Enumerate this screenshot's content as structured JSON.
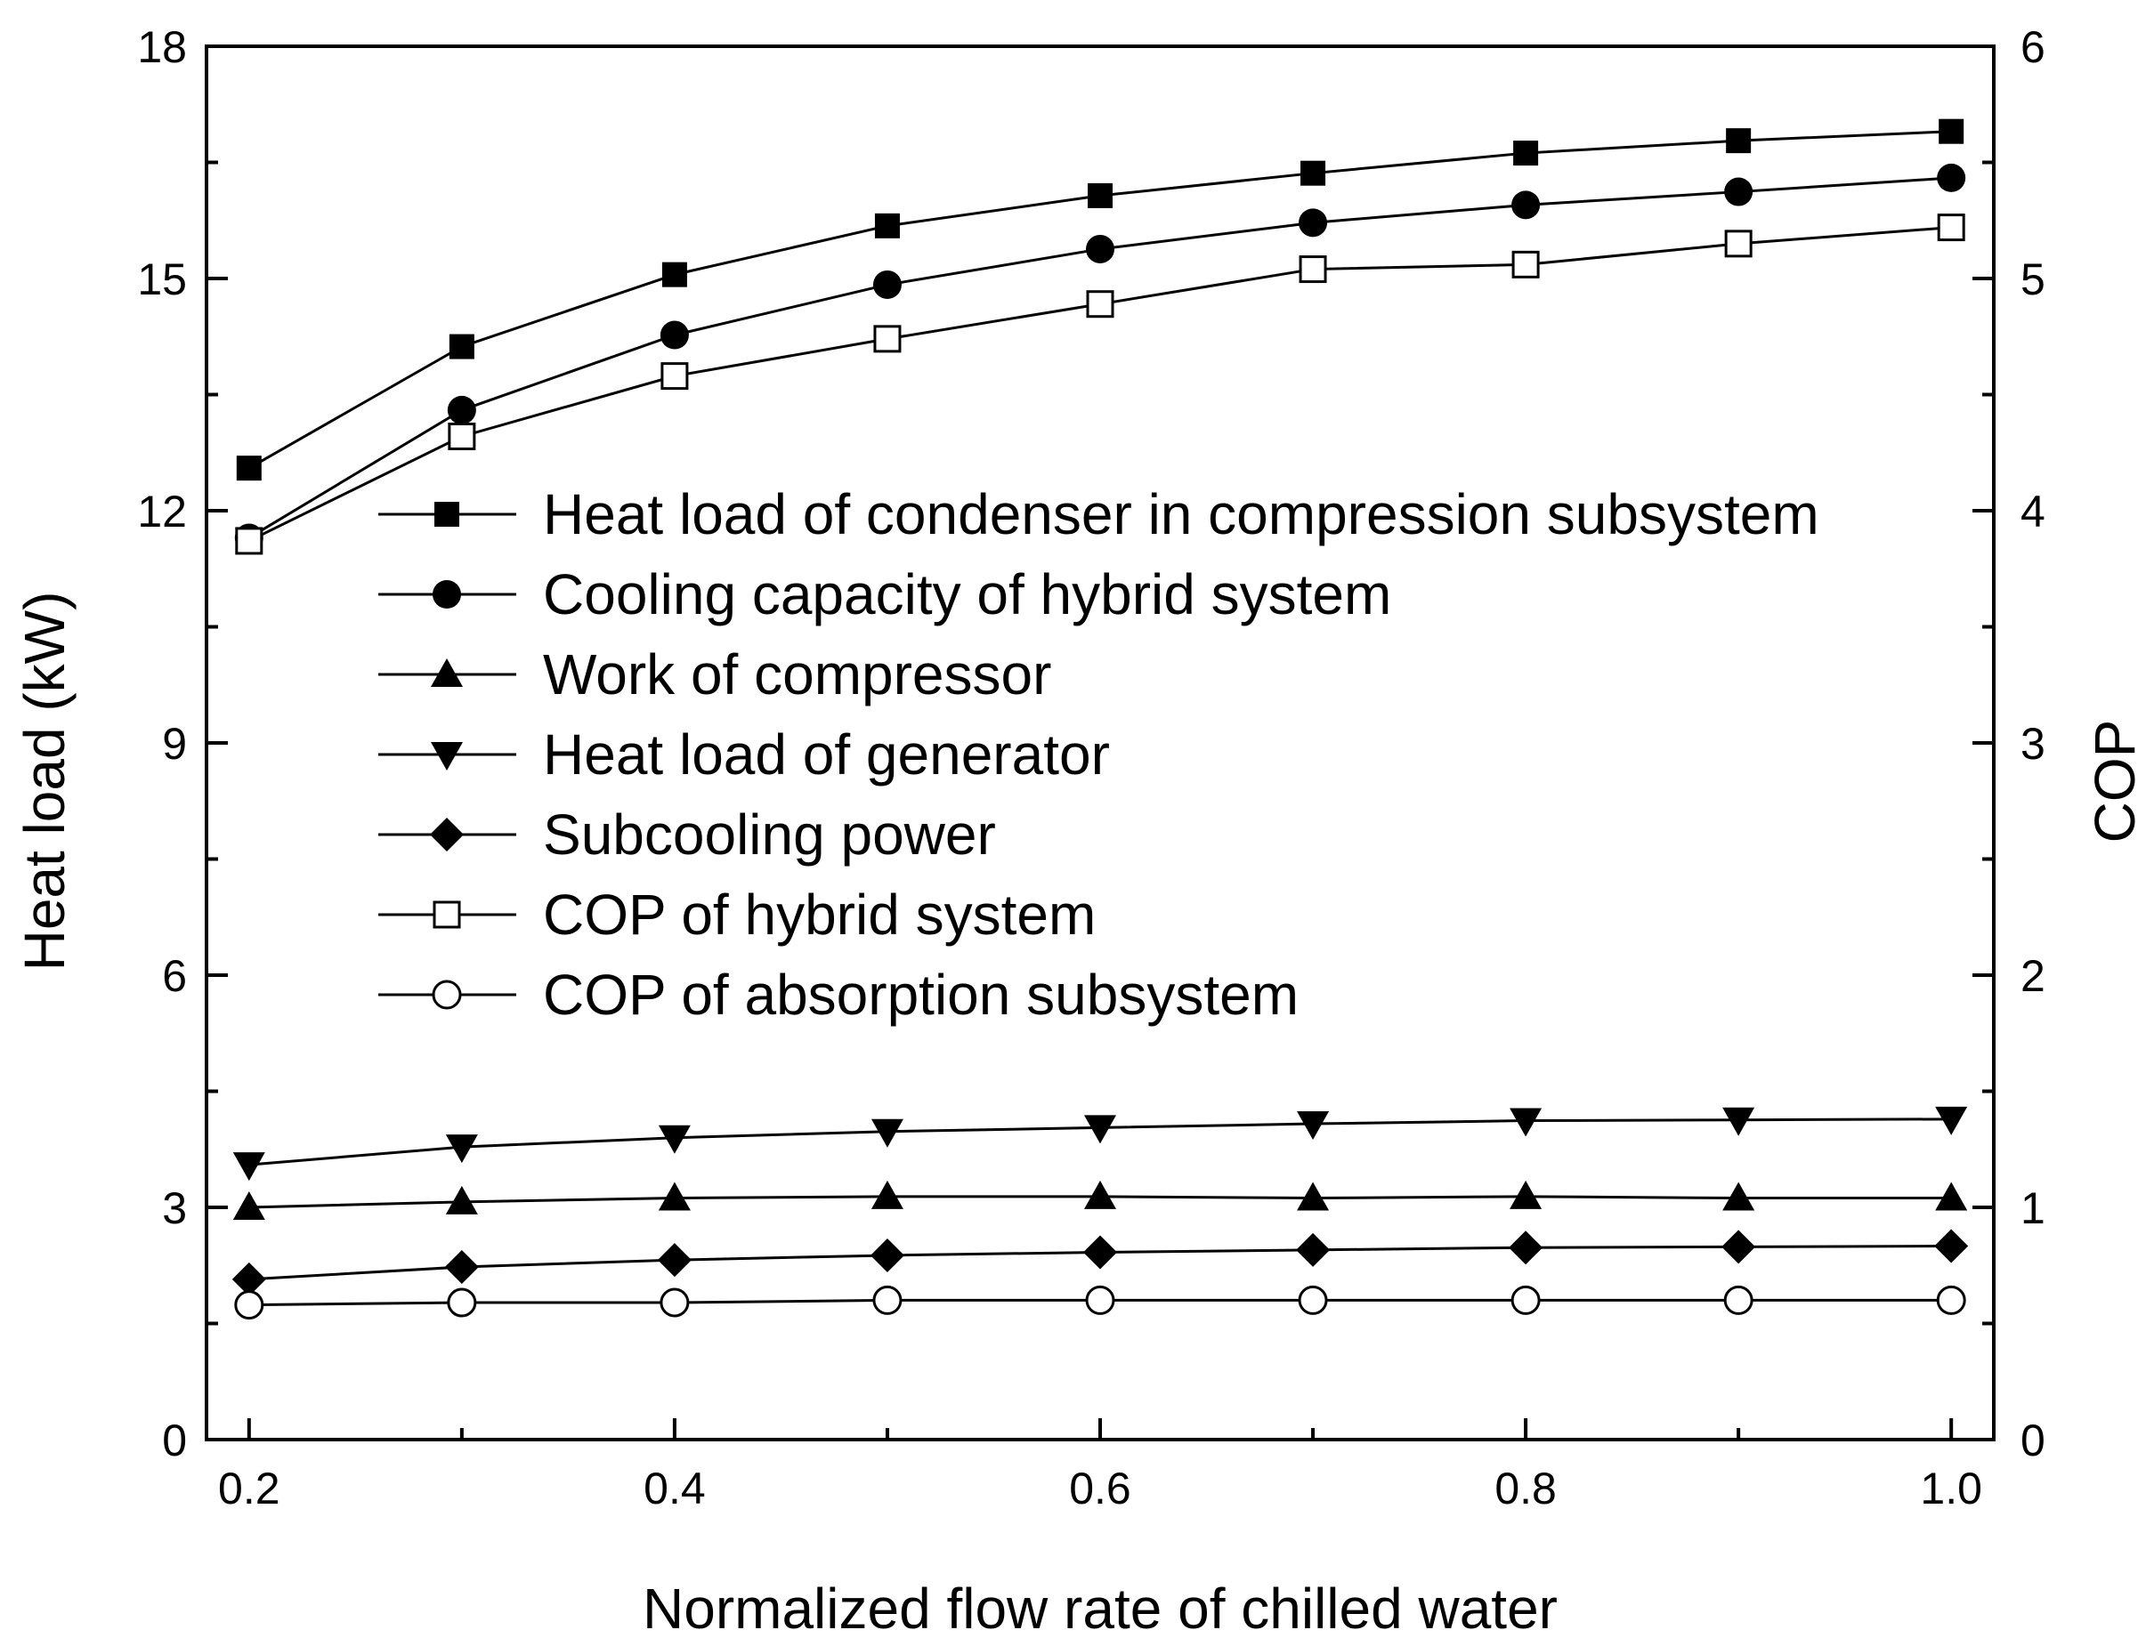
{
  "chart_data": {
    "type": "line",
    "xlabel": "Normalized flow rate of chilled water",
    "ylabel_left": "Heat load (kW)",
    "ylabel_right": "COP",
    "xlim": [
      0.18,
      1.02
    ],
    "ylim_left": [
      0,
      18
    ],
    "ylim_right": [
      0,
      6
    ],
    "x_ticks": [
      0.2,
      0.4,
      0.6,
      0.8,
      1.0
    ],
    "x_tick_labels": [
      "0.2",
      "0.4",
      "0.6",
      "0.8",
      "1.0"
    ],
    "y_left_ticks": [
      0,
      3,
      6,
      9,
      12,
      15,
      18
    ],
    "y_left_tick_labels": [
      "0",
      "3",
      "6",
      "9",
      "12",
      "15",
      "18"
    ],
    "y_right_ticks": [
      0,
      1,
      2,
      3,
      4,
      5,
      6
    ],
    "y_right_tick_labels": [
      "0",
      "1",
      "2",
      "3",
      "4",
      "5",
      "6"
    ],
    "legend_position": "center",
    "x": [
      0.2,
      0.3,
      0.4,
      0.5,
      0.6,
      0.7,
      0.8,
      0.9,
      1.0
    ],
    "series": [
      {
        "name": "Heat load of condenser in compression subsystem",
        "axis": "left",
        "marker": "square-filled",
        "values": [
          12.55,
          14.12,
          15.05,
          15.68,
          16.07,
          16.36,
          16.62,
          16.78,
          16.9
        ]
      },
      {
        "name": "Cooling capacity of hybrid system",
        "axis": "left",
        "marker": "circle-filled",
        "values": [
          11.65,
          13.3,
          14.27,
          14.92,
          15.38,
          15.72,
          15.95,
          16.12,
          16.3
        ]
      },
      {
        "name": "Work of compressor",
        "axis": "left",
        "marker": "triangle-up-filled",
        "values": [
          3.0,
          3.07,
          3.12,
          3.14,
          3.14,
          3.12,
          3.14,
          3.12,
          3.12
        ]
      },
      {
        "name": "Heat load of generator",
        "axis": "left",
        "marker": "triangle-down-filled",
        "values": [
          3.55,
          3.78,
          3.9,
          3.98,
          4.03,
          4.08,
          4.12,
          4.13,
          4.14
        ]
      },
      {
        "name": "Subcooling power",
        "axis": "left",
        "marker": "diamond-filled",
        "values": [
          2.07,
          2.23,
          2.32,
          2.38,
          2.42,
          2.45,
          2.48,
          2.49,
          2.5
        ]
      },
      {
        "name": "COP of hybrid system",
        "axis": "right",
        "marker": "square-open",
        "values": [
          3.87,
          4.32,
          4.58,
          4.74,
          4.89,
          5.04,
          5.06,
          5.15,
          5.22
        ]
      },
      {
        "name": "COP of absorption subsystem",
        "axis": "right",
        "marker": "circle-open",
        "values": [
          0.58,
          0.59,
          0.59,
          0.6,
          0.6,
          0.6,
          0.6,
          0.6,
          0.6
        ]
      }
    ]
  }
}
